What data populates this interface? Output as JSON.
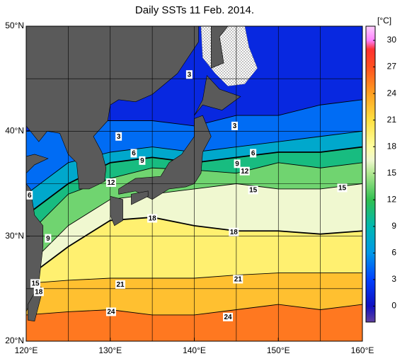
{
  "chart_data": {
    "type": "sst-map",
    "title": "Daily SSTs 11 Feb. 2014.",
    "xlim": [
      120,
      160
    ],
    "ylim": [
      20,
      50
    ],
    "xticks": [
      {
        "value": 120,
        "label": "120°E"
      },
      {
        "value": 130,
        "label": "130°E"
      },
      {
        "value": 140,
        "label": "140°E"
      },
      {
        "value": 150,
        "label": "150°E"
      },
      {
        "value": 160,
        "label": "160°E"
      }
    ],
    "yticks": [
      {
        "value": 20,
        "label": "20°N"
      },
      {
        "value": 30,
        "label": "30°N"
      },
      {
        "value": 40,
        "label": "40°N"
      },
      {
        "value": 50,
        "label": "50°N"
      }
    ],
    "gridlines_x": [
      125,
      130,
      135,
      140,
      145,
      150,
      155
    ],
    "gridlines_y": [
      25,
      30,
      35,
      40,
      45
    ],
    "colorbar": {
      "unit": "[°C]",
      "lim": [
        -1.8,
        31.6
      ],
      "ticks": [
        30,
        27,
        24,
        21,
        18,
        15,
        12,
        9,
        6,
        3,
        0
      ],
      "colorscale": [
        [
          -1.8,
          "#6040a0"
        ],
        [
          0,
          "#1010c0"
        ],
        [
          3,
          "#0040ff"
        ],
        [
          6,
          "#0098e8"
        ],
        [
          9,
          "#00b8b0"
        ],
        [
          12,
          "#30c050"
        ],
        [
          15,
          "#b0e890"
        ],
        [
          16.5,
          "#f0f8d0"
        ],
        [
          18,
          "#ffffa0"
        ],
        [
          21,
          "#ffe040"
        ],
        [
          24,
          "#ffa020"
        ],
        [
          27,
          "#ff5020"
        ],
        [
          29,
          "#ff3030"
        ],
        [
          30,
          "#ff80ff"
        ],
        [
          31.6,
          "#ffd0ff"
        ]
      ]
    },
    "isotherm_lons": [
      120,
      125,
      130,
      135,
      140,
      145,
      150,
      155,
      160
    ],
    "isotherms": [
      {
        "level": 24,
        "lat": [
          22.5,
          22.8,
          23,
          22.5,
          22.5,
          23,
          23.5,
          23,
          23.5
        ]
      },
      {
        "level": 21,
        "lat": [
          25.5,
          25.8,
          26,
          26,
          26,
          26.3,
          26.5,
          26.5,
          26.5
        ]
      },
      {
        "level": 18,
        "lat": [
          26,
          29,
          31.5,
          31.8,
          31,
          30.5,
          30.5,
          30.2,
          30.5
        ]
      },
      {
        "level": 15,
        "lat": [
          27,
          31,
          33.5,
          34,
          34.5,
          35,
          34.5,
          34.5,
          35
        ]
      },
      {
        "level": 12,
        "lat": [
          30,
          34,
          35.5,
          36.5,
          36.3,
          36,
          37,
          36.5,
          37
        ]
      },
      {
        "level": 9,
        "lat": [
          32,
          35,
          37,
          37.5,
          37,
          37.5,
          38,
          38,
          38.5
        ]
      },
      {
        "level": 6,
        "lat": [
          34,
          37,
          38,
          38.5,
          38,
          38.5,
          39,
          39.5,
          40
        ]
      },
      {
        "level": 3,
        "lat": [
          40,
          41,
          41,
          41,
          40.5,
          41.5,
          41.5,
          42.5,
          43
        ]
      }
    ],
    "contour_labels": [
      {
        "value": 3,
        "lon": 139.4,
        "lat": 45.4
      },
      {
        "value": 3,
        "lon": 131.0,
        "lat": 39.5
      },
      {
        "value": 3,
        "lon": 144.8,
        "lat": 40.5
      },
      {
        "value": 6,
        "lon": 132.8,
        "lat": 37.9
      },
      {
        "value": 9,
        "lon": 133.8,
        "lat": 37.2
      },
      {
        "value": 9,
        "lon": 145.1,
        "lat": 36.9
      },
      {
        "value": 6,
        "lon": 147.0,
        "lat": 37.9
      },
      {
        "value": 12,
        "lon": 146.0,
        "lat": 36.2
      },
      {
        "value": 12,
        "lon": 130.1,
        "lat": 35.1
      },
      {
        "value": 6,
        "lon": 120.4,
        "lat": 33.9
      },
      {
        "value": 15,
        "lon": 147.0,
        "lat": 34.4
      },
      {
        "value": 15,
        "lon": 157.6,
        "lat": 34.6
      },
      {
        "value": 18,
        "lon": 135.0,
        "lat": 31.7
      },
      {
        "value": 18,
        "lon": 144.7,
        "lat": 30.4
      },
      {
        "value": 9,
        "lon": 122.6,
        "lat": 29.8
      },
      {
        "value": 15,
        "lon": 121.1,
        "lat": 25.5
      },
      {
        "value": 18,
        "lon": 121.5,
        "lat": 24.7
      },
      {
        "value": 21,
        "lon": 131.2,
        "lat": 25.4
      },
      {
        "value": 21,
        "lon": 145.2,
        "lat": 25.9
      },
      {
        "value": 24,
        "lon": 130.1,
        "lat": 22.8
      },
      {
        "value": 24,
        "lon": 144.0,
        "lat": 22.3
      }
    ]
  }
}
